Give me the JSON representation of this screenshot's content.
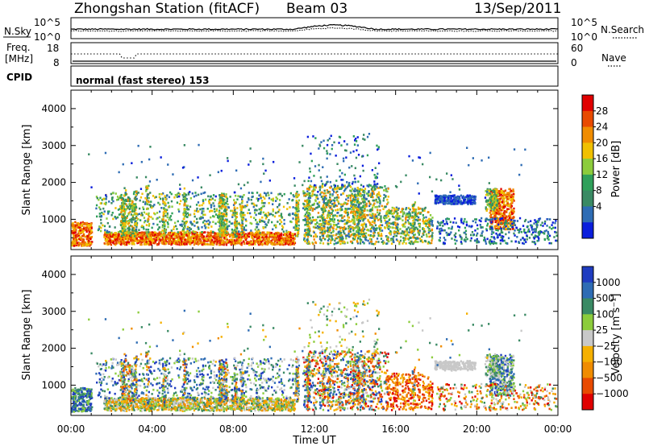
{
  "header": {
    "title": "Zhongshan Station (fitACF)",
    "beam": "Beam 03",
    "date": "13/Sep/2011"
  },
  "noise_panel": {
    "left_label": "N.Sky",
    "left_ticks": [
      "10^5",
      "10^0"
    ],
    "right_label": "N.Search",
    "right_ticks": [
      "10^5",
      "10^0"
    ]
  },
  "freq_panel": {
    "left_label_1": "Freq.",
    "left_label_2": "[MHz]",
    "left_ticks": [
      "18",
      "8"
    ],
    "right_label": "Nave",
    "right_ticks": [
      "60",
      "0"
    ]
  },
  "cpid": {
    "label": "CPID",
    "value": "normal (fast stereo) 153"
  },
  "colors": {
    "power": [
      "#0a1edc",
      "#2e6cb4",
      "#3a8a64",
      "#2fa05a",
      "#8ccc3c",
      "#f0c000",
      "#f08c00",
      "#e84a00",
      "#e00000"
    ],
    "velocity": [
      "#e00000",
      "#e84a00",
      "#f08c00",
      "#f5b000",
      "#c8c8c8",
      "#8ccc3c",
      "#3a8a64",
      "#2e6cb4",
      "#1f3cc0"
    ]
  },
  "chart_data": [
    {
      "type": "heatmap",
      "panel": "power",
      "ylabel": "Slant Range [km]",
      "yticks": [
        "4000",
        "3000",
        "2000",
        "1000"
      ],
      "ylim": [
        180,
        4500
      ],
      "x_time_range_ut": [
        "00:00",
        "24:00"
      ],
      "colorbar_label": "Power [dB]",
      "colorbar_ticks": [
        "28",
        "24",
        "20",
        "16",
        "12",
        "8",
        "4"
      ],
      "colorbar_range": [
        0,
        32
      ],
      "bands": [
        {
          "t0": 0.0,
          "t1": 1.1,
          "r0": 250,
          "r1": 900,
          "level": "high"
        },
        {
          "t0": 1.6,
          "t1": 11.0,
          "r0": 280,
          "r1": 650,
          "level": "high"
        },
        {
          "t0": 1.5,
          "t1": 11.0,
          "r0": 650,
          "r1": 1700,
          "level": "mid"
        },
        {
          "t0": 11.5,
          "t1": 17.8,
          "r0": 300,
          "r1": 2000,
          "level": "mid"
        },
        {
          "t0": 11.6,
          "t1": 15.2,
          "r0": 1800,
          "r1": 3300,
          "level": "sparse"
        },
        {
          "t0": 17.9,
          "t1": 19.9,
          "r0": 1380,
          "r1": 1620,
          "level": "low"
        },
        {
          "t0": 20.6,
          "t1": 21.8,
          "r0": 700,
          "r1": 1800,
          "level": "high"
        },
        {
          "t0": 18.0,
          "t1": 24.0,
          "r0": 300,
          "r1": 1000,
          "level": "low"
        }
      ]
    },
    {
      "type": "heatmap",
      "panel": "velocity",
      "xlabel": "Time UT",
      "xticks": [
        "00:00",
        "04:00",
        "08:00",
        "12:00",
        "16:00",
        "20:00",
        "00:00"
      ],
      "ylabel": "Slant Range [km]",
      "yticks": [
        "4000",
        "3000",
        "2000",
        "1000"
      ],
      "ylim": [
        180,
        4500
      ],
      "colorbar_label": "Velocity [m s⁻¹]",
      "colorbar_ticks": [
        "1000",
        "500",
        "100",
        "25",
        "−25",
        "−100",
        "−500",
        "−1000"
      ]
    }
  ]
}
